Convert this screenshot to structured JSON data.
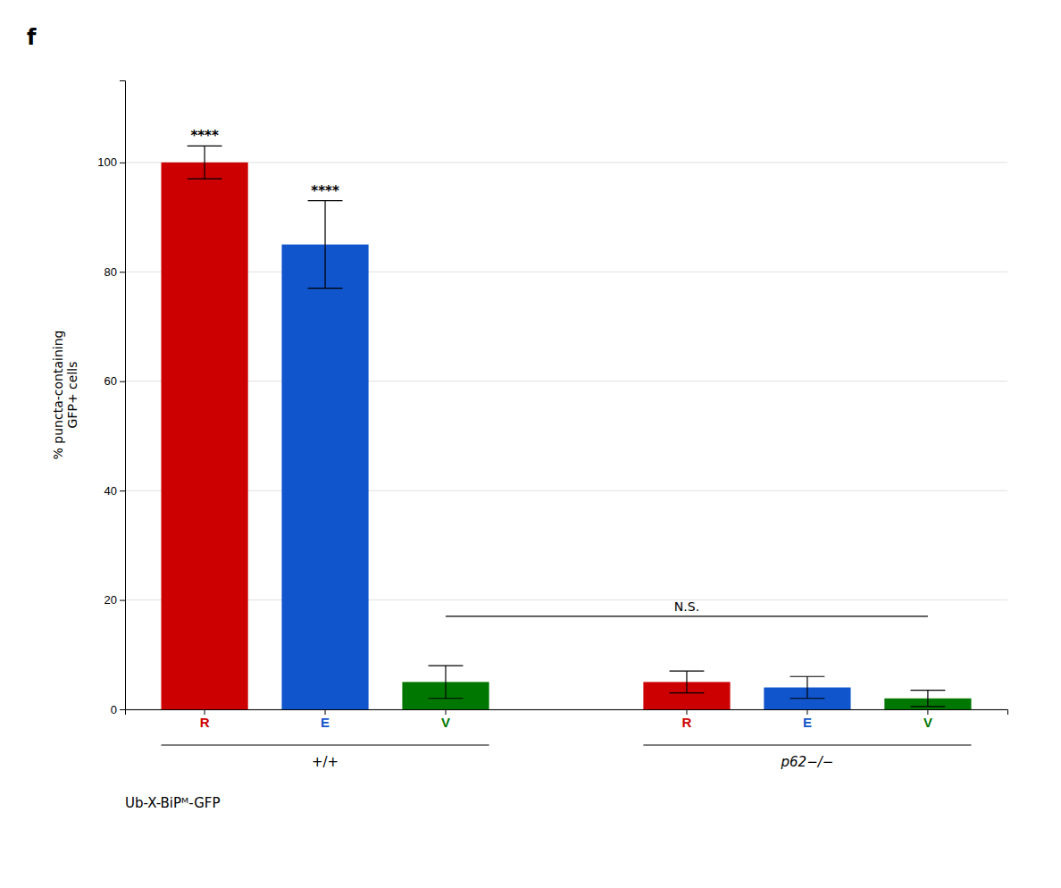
{
  "chart_data": {
    "type": "bar",
    "title": "f",
    "categories": [
      "R",
      "E",
      "V",
      "R",
      "E",
      "V"
    ],
    "values": [
      100,
      85,
      5,
      5,
      4,
      2
    ],
    "errors": [
      3,
      8,
      3,
      2,
      2,
      1.5
    ],
    "colors": [
      "#cc0000",
      "#1155cc",
      "#007700",
      "#cc0000",
      "#1155cc",
      "#007700"
    ],
    "ylim": [
      0,
      115
    ],
    "yticks": [
      0,
      20,
      40,
      60,
      80,
      100
    ],
    "y_label": "% puncta-containing\nGFP+ cells",
    "grid": true,
    "significance": [
      "****",
      "****",
      null,
      null,
      null,
      null
    ],
    "bracket": {
      "label": "N.S.",
      "y": 17,
      "from": 2,
      "to": 5
    },
    "groups": [
      {
        "label": "+/+",
        "from": 0,
        "to": 2
      },
      {
        "label": "p62−/−",
        "from": 3,
        "to": 5
      }
    ],
    "annotations": [
      "Ub-X-BiPᴹ-GFP"
    ]
  }
}
